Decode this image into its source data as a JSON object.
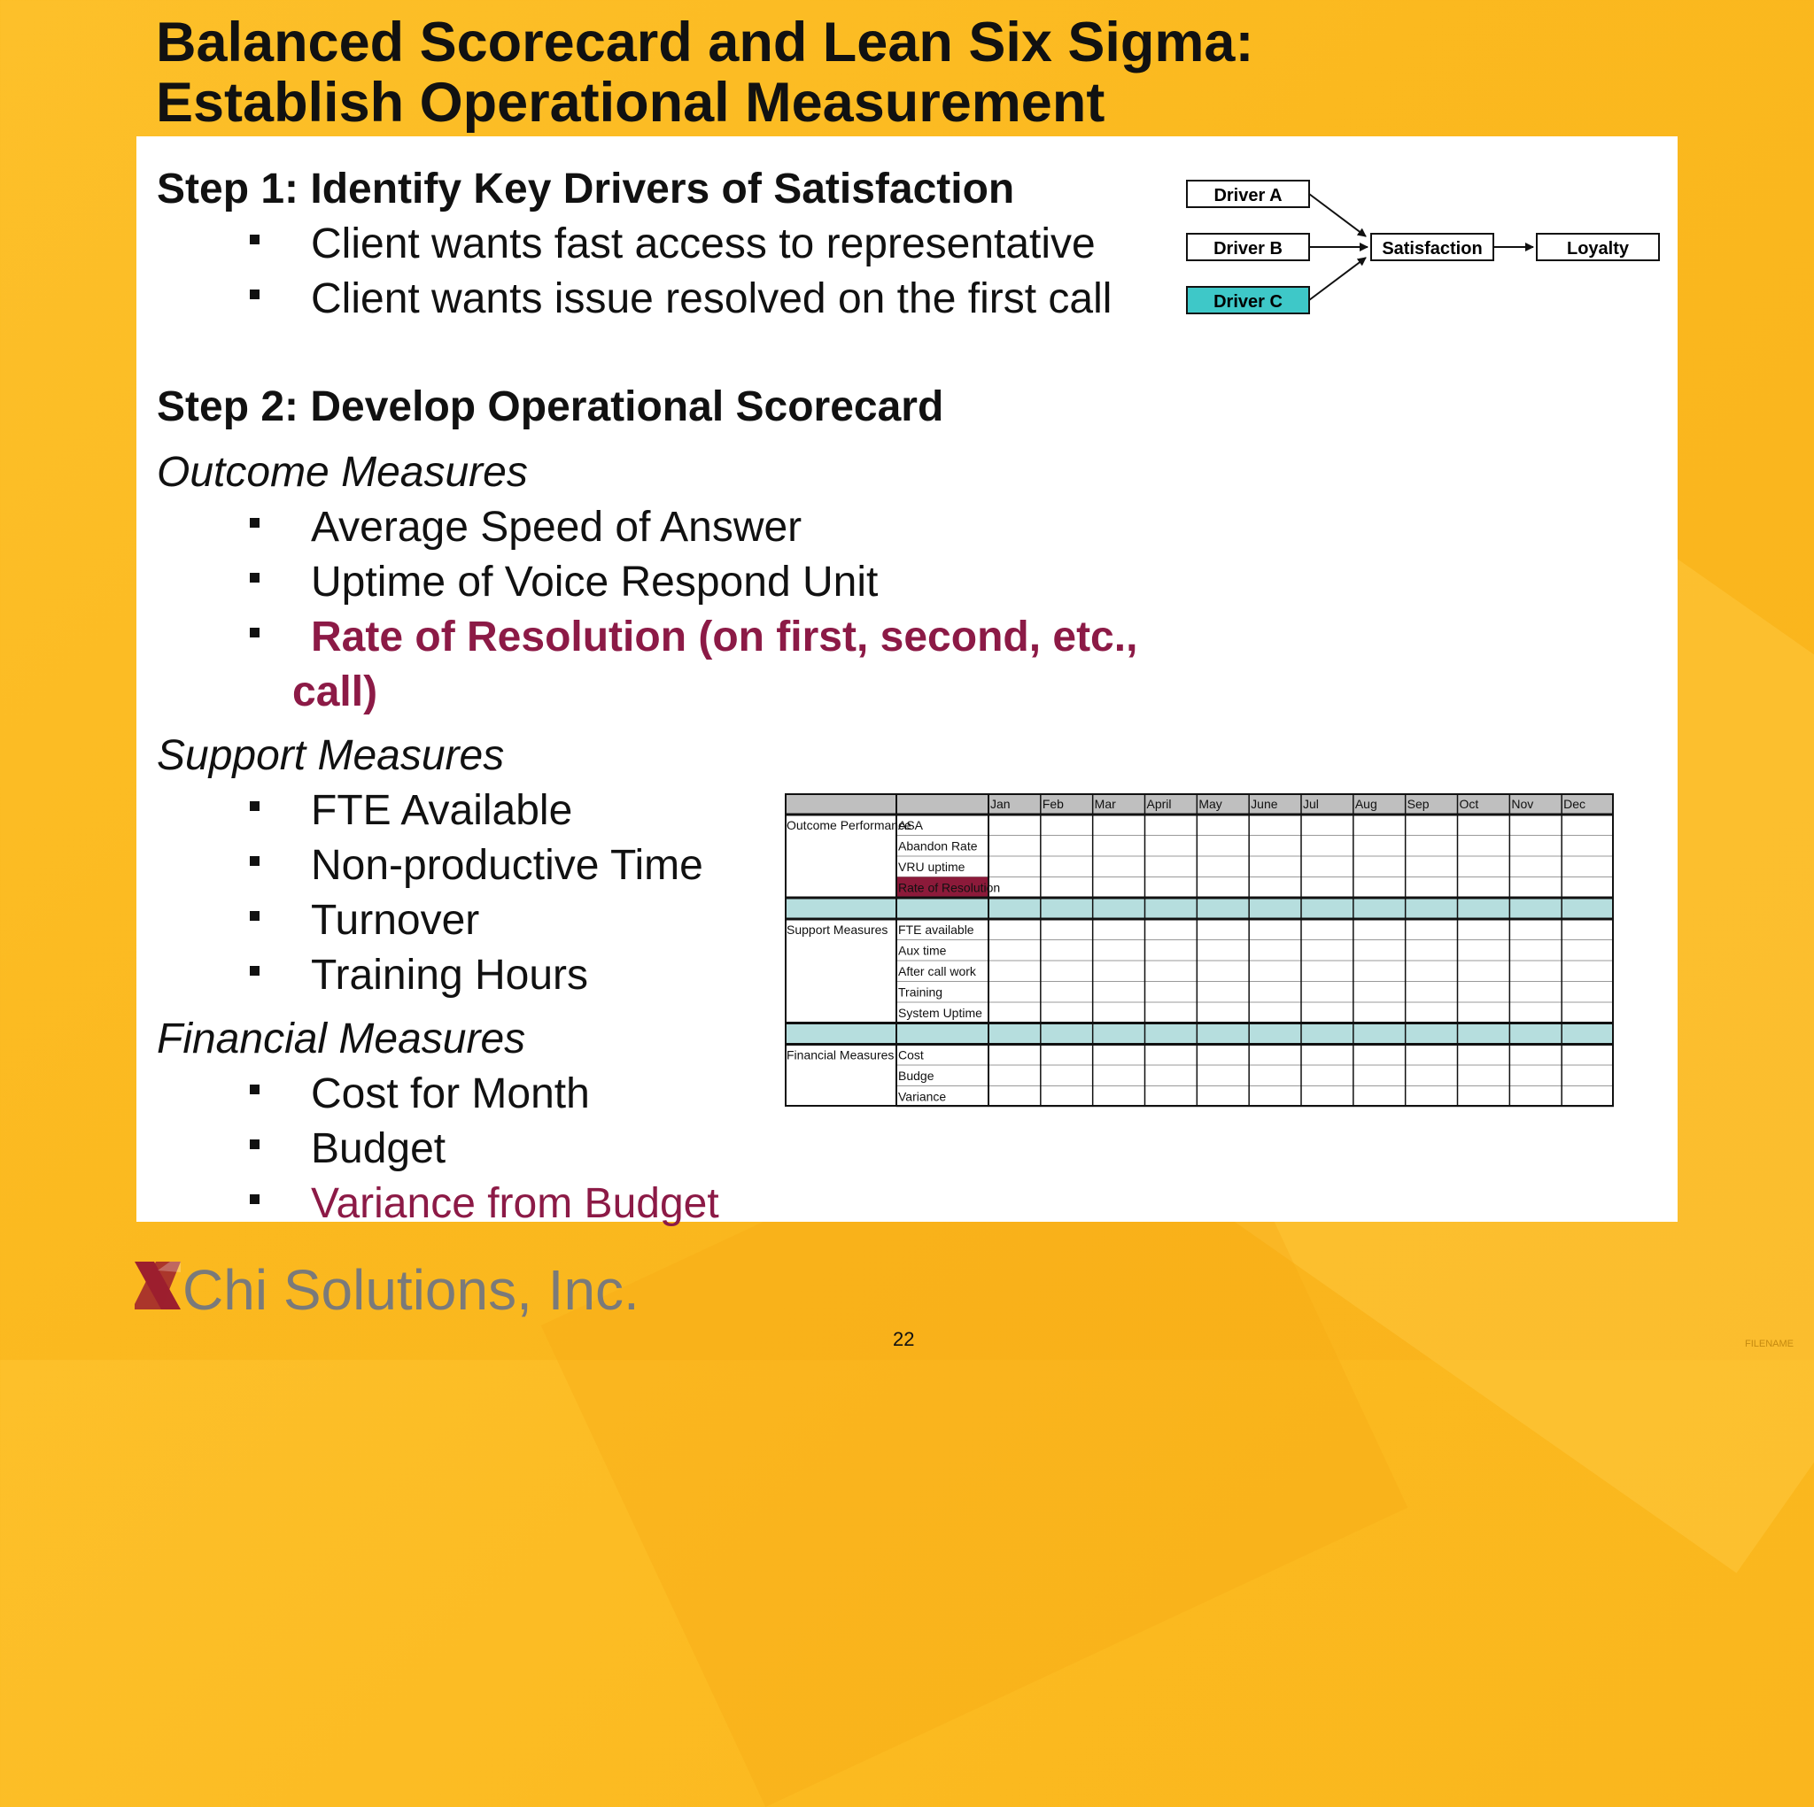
{
  "title": {
    "line1": "Balanced Scorecard and Lean Six Sigma:",
    "line2": "Establish Operational Measurement"
  },
  "step1": {
    "heading": "Step 1:  Identify Key Drivers of Satisfaction",
    "bullets": [
      "Client wants fast access to representative",
      "Client wants issue resolved on the first call"
    ]
  },
  "driver_diagram": {
    "drivers": [
      "Driver A",
      "Driver B",
      "Driver C"
    ],
    "satisfaction": "Satisfaction",
    "loyalty": "Loyalty",
    "highlight_color": "#3ec8c8"
  },
  "step2": {
    "heading": "Step 2:  Develop Operational Scorecard",
    "outcome": {
      "label": "Outcome Measures",
      "bullets": [
        "Average Speed of Answer",
        "Uptime of Voice Respond Unit"
      ],
      "highlight_line1": "Rate of Resolution (on first, second, etc.,",
      "highlight_line2": "call)"
    },
    "support": {
      "label": "Support Measures",
      "bullets": [
        "FTE Available",
        "Non-productive Time",
        "Turnover",
        "Training Hours"
      ]
    },
    "financial": {
      "label": "Financial Measures",
      "bullets": [
        "Cost for Month",
        "Budget"
      ],
      "highlight": "Variance from Budget"
    }
  },
  "scorecard": {
    "months": [
      "Jan",
      "Feb",
      "Mar",
      "April",
      "May",
      "June",
      "Jul",
      "Aug",
      "Sep",
      "Oct",
      "Nov",
      "Dec"
    ],
    "sections": [
      {
        "name": "Outcome Performance",
        "rows": [
          "ASA",
          "Abandon Rate",
          "VRU uptime",
          "Rate of Resolution"
        ]
      },
      {
        "name": "Support Measures",
        "rows": [
          "FTE available",
          "Aux time",
          "After call work",
          "Training",
          "System Uptime"
        ]
      },
      {
        "name": "Financial Measures",
        "rows": [
          "Cost",
          "Budge",
          "Variance"
        ]
      }
    ],
    "highlight_row": "Rate of Resolution",
    "colors": {
      "header": "#bfbfbf",
      "separator": "#b6dede",
      "highlight": "#8c1a3a"
    }
  },
  "logo": {
    "text": "Chi Solutions, Inc.",
    "mark_color": "#9c1f2e"
  },
  "page_number": "22",
  "footer_filename": "FILENAME",
  "accent_color": "#8c1a46"
}
